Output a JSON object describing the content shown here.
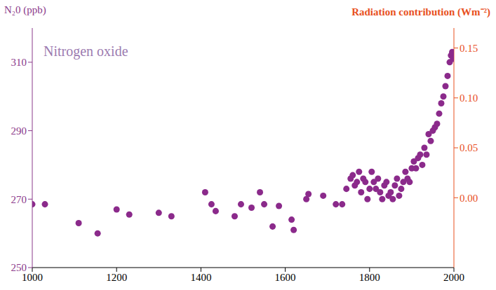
{
  "chart_data": {
    "type": "scatter",
    "y_label": "N₂0 (ppb)",
    "y2_label": "Radiation contribution (Wm⁻²)",
    "annotations": [
      "Nitrogen oxide"
    ],
    "x": [
      1000,
      1030,
      1110,
      1155,
      1200,
      1230,
      1300,
      1330,
      1410,
      1425,
      1435,
      1480,
      1495,
      1520,
      1540,
      1550,
      1570,
      1585,
      1615,
      1620,
      1650,
      1655,
      1690,
      1720,
      1735,
      1745,
      1755,
      1760,
      1765,
      1770,
      1775,
      1780,
      1785,
      1790,
      1795,
      1800,
      1805,
      1810,
      1815,
      1820,
      1825,
      1830,
      1835,
      1840,
      1845,
      1850,
      1855,
      1860,
      1865,
      1870,
      1875,
      1880,
      1885,
      1890,
      1895,
      1900,
      1905,
      1910,
      1915,
      1920,
      1925,
      1930,
      1935,
      1940,
      1945,
      1950,
      1955,
      1960,
      1965,
      1970,
      1975,
      1980,
      1985,
      1990,
      1993,
      1996,
      1998
    ],
    "values": [
      268.5,
      268.5,
      263,
      260,
      267,
      265.5,
      266,
      265,
      272,
      268.5,
      266.5,
      265,
      268.5,
      267.5,
      272,
      268.5,
      262,
      268,
      264,
      261,
      270,
      271.5,
      271,
      268.5,
      268.5,
      273,
      276,
      277,
      274,
      275,
      278,
      272,
      276,
      275,
      270,
      273,
      278,
      275,
      273,
      276,
      272,
      270,
      274,
      275,
      271,
      272,
      270,
      274,
      276,
      271,
      273,
      275,
      278,
      276,
      275,
      279,
      281,
      279,
      282,
      283,
      280,
      285,
      283,
      289,
      287,
      290,
      291,
      292,
      295,
      298,
      300,
      303,
      306,
      310,
      312,
      313,
      311
    ],
    "color": "#8b2a8b",
    "marker": "circle",
    "xlim": [
      1000,
      2000
    ],
    "xticks": [
      1000,
      1200,
      1400,
      1600,
      1800,
      2000
    ],
    "ylim": [
      250,
      320
    ],
    "yticks": [
      250,
      270,
      290,
      310
    ],
    "y2lim": [
      -0.07,
      0.17
    ],
    "y2ticks": [
      {
        "value": 0,
        "label": "0.00"
      },
      {
        "value": 0.05,
        "label": "0.05"
      },
      {
        "value": 0.1,
        "label": "0.10"
      },
      {
        "value": 0.15,
        "label": "0.15"
      }
    ],
    "grid": false
  }
}
